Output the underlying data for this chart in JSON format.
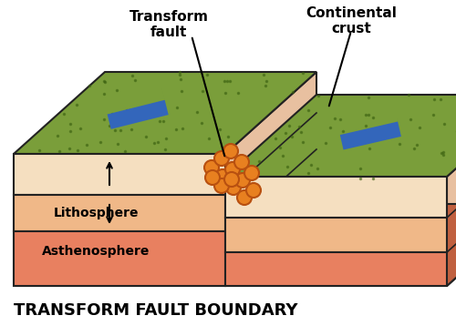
{
  "title": "TRANSFORM FAULT BOUNDARY",
  "label_transform_fault": "Transform\nfault",
  "label_continental_crust": "Continental\ncrust",
  "label_lithosphere": "Lithosphere",
  "label_asthenosphere": "Asthenosphere",
  "bg_color": "#ffffff",
  "grass_color": "#7a9e3a",
  "grass_dark": "#4a7020",
  "top_layer_color": "#f5dfc0",
  "litho_color": "#f0b888",
  "asthen_color": "#e88060",
  "side_shade": "#e8c0a0",
  "arrow_color": "#3366bb",
  "dot_color": "#e88020",
  "dot_edge": "#b85010",
  "outline": "#222222",
  "fault_face_color": "#f0c8a8"
}
